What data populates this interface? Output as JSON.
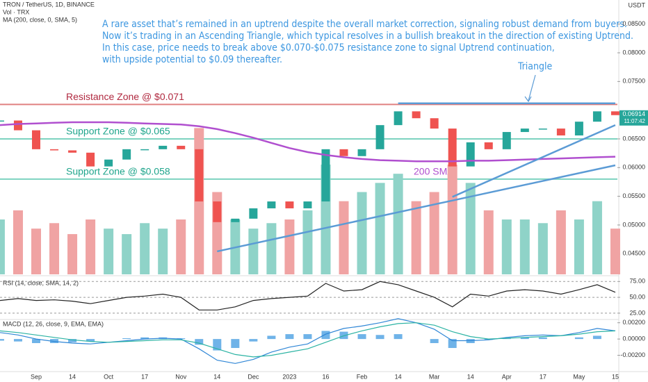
{
  "chart_data": [
    {
      "type": "line",
      "title": "TRON / TetherUS, 1D, BINANCE",
      "subtitle": [
        "Vol · TRX",
        "MA (200, close, 0, SMA, 5)"
      ],
      "y_axis_label": "USDT",
      "categories": [
        null,
        null,
        "Sep",
        null,
        "14",
        null,
        "Oct",
        null,
        "17",
        null,
        "Nov",
        null,
        "14",
        null,
        "Dec",
        null,
        "2023",
        null,
        "16",
        null,
        "Feb",
        null,
        "14",
        null,
        "Mar",
        null,
        "14",
        null,
        "Apr",
        null,
        "17",
        null,
        "May",
        null,
        "15"
      ],
      "series": [
        {
          "style": "candle",
          "color": "#26a69a",
          "down_color": "#ef5350",
          "values": [
            0.0682,
            0.0665,
            0.0632,
            0.063,
            0.0626,
            0.0602,
            0.0614,
            0.0632,
            0.0632,
            0.0638,
            0.0632,
            0.0541,
            0.0505,
            0.0511,
            0.0529,
            0.0541,
            0.0529,
            0.0541,
            0.0632,
            0.062,
            0.0632,
            0.0674,
            0.0698,
            0.0686,
            0.0668,
            0.0602,
            0.0644,
            0.0632,
            0.0662,
            0.0668,
            0.0668,
            0.0656,
            0.068,
            0.0698,
            0.06914
          ]
        },
        {
          "name": "200 SMA",
          "color": "#b04fcf",
          "values": [
            0.0674,
            0.0676,
            0.0677,
            0.0678,
            0.0679,
            0.0679,
            0.0679,
            0.0678,
            0.0677,
            0.0676,
            0.0675,
            0.0672,
            0.0667,
            0.066,
            0.0652,
            0.0643,
            0.0634,
            0.0627,
            0.0622,
            0.0618,
            0.0615,
            0.0613,
            0.0612,
            0.0611,
            0.0611,
            0.0611,
            0.0612,
            0.0612,
            0.0613,
            0.0614,
            0.0615,
            0.0616,
            0.0617,
            0.0618,
            0.0619
          ]
        },
        {
          "style": "volume",
          "axis": "y2",
          "color": "#8fd3c8",
          "down_color": "#f0a3a3",
          "values": [
            30,
            35,
            25,
            28,
            22,
            30,
            25,
            22,
            28,
            25,
            30,
            80,
            45,
            30,
            25,
            28,
            30,
            35,
            60,
            40,
            45,
            50,
            55,
            40,
            45,
            60,
            50,
            35,
            30,
            30,
            28,
            35,
            30,
            40,
            25
          ]
        }
      ],
      "ylim": [
        0.0414,
        0.0892
      ],
      "y2lim": [
        0,
        150
      ],
      "yticks": [
        {
          "value": 0.045,
          "label": "0.04500"
        },
        {
          "value": 0.05,
          "label": "0.05000"
        },
        {
          "value": 0.055,
          "label": "0.05500"
        },
        {
          "value": 0.06,
          "label": "0.06000"
        },
        {
          "value": 0.065,
          "label": "0.06500"
        },
        {
          "value": 0.075,
          "label": "0.07500"
        },
        {
          "value": 0.08,
          "label": "0.08000"
        },
        {
          "value": 0.085,
          "label": "0.08500"
        }
      ],
      "levels": [
        {
          "label": "Resistance Zone @ $0.071",
          "value": 0.071,
          "color": "#e08080",
          "text_color": "#b0283f"
        },
        {
          "label": "Support Zone @ $0.065",
          "value": 0.065,
          "color": "#7dd3c0",
          "text_color": "#1fa58c"
        },
        {
          "label": "Support Zone @ $0.058",
          "value": 0.058,
          "color": "#7dd3c0",
          "text_color": "#1fa58c"
        }
      ],
      "trendlines": [
        {
          "from": [
            22,
            0.0712
          ],
          "to": [
            34,
            0.0712
          ],
          "color": "#5b9bd5"
        },
        {
          "from": [
            12,
            0.0454
          ],
          "to": [
            34,
            0.0604
          ],
          "color": "#5b9bd5"
        },
        {
          "from": [
            25,
            0.0549
          ],
          "to": [
            34,
            0.0674
          ],
          "color": "#5b9bd5"
        }
      ],
      "last_price": {
        "value": 0.06914,
        "label": "0.06914"
      },
      "countdown": "11:07:42",
      "annotations": {
        "triangle": "Triangle",
        "sma": "200 SMA"
      },
      "note": [
        "A rare asset that’s remained in an uptrend despite the overall market correction, signaling robust demand from buyers.",
        "Now it’s trading in an Ascending Triangle, which typical resolves in a bullish breakout in the direction of existing Uptrend.",
        "In this case, price needs to break above $0.070-$0.075 resistance zone to signal Uptrend continuation,",
        "with upside potential to $0.09 thereafter."
      ]
    },
    {
      "type": "line",
      "title": "RSI (14, close, SMA, 14, 2)",
      "series": [
        {
          "color": "#222222",
          "values": [
            45,
            48,
            45,
            46,
            44,
            40,
            45,
            50,
            52,
            55,
            50,
            30,
            30,
            35,
            45,
            48,
            50,
            52,
            72,
            60,
            62,
            75,
            70,
            60,
            50,
            35,
            55,
            52,
            60,
            62,
            60,
            55,
            62,
            70,
            58
          ]
        }
      ],
      "ylim": [
        15,
        83
      ],
      "yticks": [
        {
          "value": 25,
          "label": "25.00"
        },
        {
          "value": 50,
          "label": "50.00"
        },
        {
          "value": 75,
          "label": "75.00"
        }
      ]
    },
    {
      "type": "line",
      "title": "MACD (12, 26, close, 9, EMA, EMA)",
      "series": [
        {
          "style": "histogram",
          "color": "#6fb3e8",
          "values": [
            -0.0002,
            -0.0003,
            -0.0005,
            -0.0005,
            -0.0004,
            -0.0003,
            0,
            0.0001,
            0.0002,
            0.0002,
            0.0001,
            -0.0007,
            -0.0014,
            -0.0011,
            -0.0003,
            0.0004,
            0.0006,
            0.0006,
            0.001,
            0.0009,
            0.0006,
            0.0005,
            0.0006,
            0,
            -0.0005,
            -0.0011,
            -0.0005,
            -0.0001,
            0.0001,
            0.0002,
            0.0002,
            0,
            0.0002,
            0.0004,
            0
          ]
        },
        {
          "color": "#2f86d6",
          "values": [
            0.0008,
            0.0005,
            0,
            -0.0003,
            -0.0005,
            -0.0006,
            -0.0004,
            -0.0002,
            0,
            0.0001,
            0,
            -0.0012,
            -0.0026,
            -0.003,
            -0.0025,
            -0.0016,
            -0.001,
            -0.0006,
            0.0006,
            0.0013,
            0.0016,
            0.002,
            0.0025,
            0.002,
            0.0012,
            -0.0002,
            -0.0002,
            -0.0001,
            0.0002,
            0.0004,
            0.0005,
            0.0004,
            0.0008,
            0.0013,
            0.001
          ]
        },
        {
          "color": "#2bb3a3",
          "values": [
            0.001,
            0.0008,
            0.0005,
            0.0002,
            -0.0001,
            -0.0003,
            -0.0004,
            -0.0003,
            -0.0002,
            -0.0001,
            -0.0001,
            -0.0005,
            -0.0012,
            -0.0019,
            -0.0022,
            -0.002,
            -0.0016,
            -0.0012,
            -0.0004,
            0.0004,
            0.001,
            0.0015,
            0.0019,
            0.002,
            0.0017,
            0.0009,
            0.0003,
            0,
            0.0001,
            0.0002,
            0.0003,
            0.0004,
            0.0006,
            0.0009,
            0.001
          ]
        }
      ],
      "ylim": [
        -0.004,
        0.0024
      ],
      "yticks": [
        {
          "value": -0.002,
          "label": "-0.00200"
        },
        {
          "value": 0,
          "label": "0.00000"
        },
        {
          "value": 0.002,
          "label": "0.00200"
        }
      ]
    }
  ]
}
